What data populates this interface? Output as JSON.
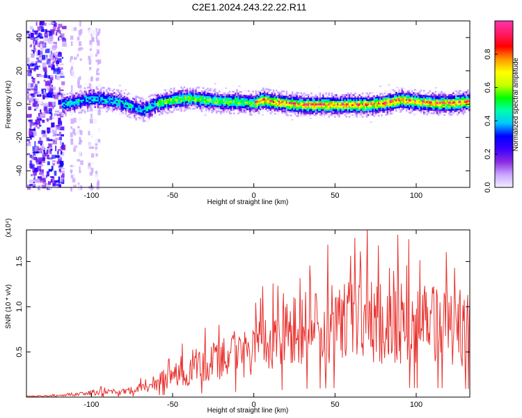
{
  "title": "C2E1.2024.243.22.22.R11",
  "chart_data": [
    {
      "type": "heatmap",
      "xlabel": "Height of straight line (km)",
      "ylabel": "Frequency (Hz)",
      "xlim": [
        -140,
        133
      ],
      "ylim": [
        -50,
        50
      ],
      "x_ticks": [
        -100,
        -50,
        0,
        50,
        100
      ],
      "y_ticks": [
        -40,
        -20,
        0,
        20,
        40
      ],
      "colorbar": {
        "label": "Normalized spectral amplitude",
        "range": [
          0,
          1
        ],
        "ticks": [
          "0.0",
          "0.2",
          "0.4",
          "0.6",
          "0.8"
        ],
        "colormap": [
          "#f4eeff",
          "#c9a6ff",
          "#8a2be2",
          "#3a00ff",
          "#0000ff",
          "#00c8ff",
          "#00ffaa",
          "#00ff00",
          "#c8ff00",
          "#ffff00",
          "#ff9900",
          "#ff0000",
          "#ff1a66",
          "#ff33aa"
        ]
      },
      "ridge": {
        "x": [
          -118,
          -110,
          -100,
          -90,
          -80,
          -75,
          -70,
          -65,
          -60,
          -55,
          -50,
          -40,
          -30,
          -20,
          -10,
          0,
          5,
          10,
          20,
          30,
          40,
          50,
          60,
          70,
          80,
          85,
          90,
          100,
          110,
          120,
          133
        ],
        "y": [
          0,
          2,
          4,
          3,
          1,
          -1,
          -3,
          -2,
          1,
          2,
          3,
          4,
          3,
          2,
          2,
          1,
          3,
          2,
          1,
          0,
          0,
          0,
          0,
          0,
          1,
          2,
          3,
          2,
          1,
          1,
          2
        ]
      },
      "noise_region_x": [
        -140,
        -118
      ],
      "noise_columns_x": [
        -112,
        -108,
        -101,
        -97
      ]
    },
    {
      "type": "line",
      "xlabel": "Height of straight line (km)",
      "ylabel": "SNR (10 * v/v)",
      "y_multiplier": "(x10⁴)",
      "color": "#e8302c",
      "xlim": [
        -140,
        133
      ],
      "ylim": [
        0,
        1.85
      ],
      "x_ticks": [
        -100,
        -50,
        0,
        50,
        100
      ],
      "y_ticks": [
        "0.5",
        "1.0",
        "1.5"
      ],
      "envelope": {
        "x": [
          -140,
          -120,
          -110,
          -100,
          -80,
          -70,
          -60,
          -50,
          -40,
          -30,
          -20,
          -10,
          0,
          10,
          20,
          30,
          40,
          50,
          60,
          70,
          80,
          90,
          100,
          110,
          120,
          133
        ],
        "y": [
          0.01,
          0.02,
          0.04,
          0.06,
          0.07,
          0.12,
          0.2,
          0.28,
          0.35,
          0.42,
          0.5,
          0.58,
          0.62,
          0.72,
          0.82,
          0.9,
          0.95,
          0.98,
          1.0,
          1.0,
          1.02,
          1.05,
          1.0,
          1.02,
          0.95,
          0.9
        ]
      }
    }
  ]
}
